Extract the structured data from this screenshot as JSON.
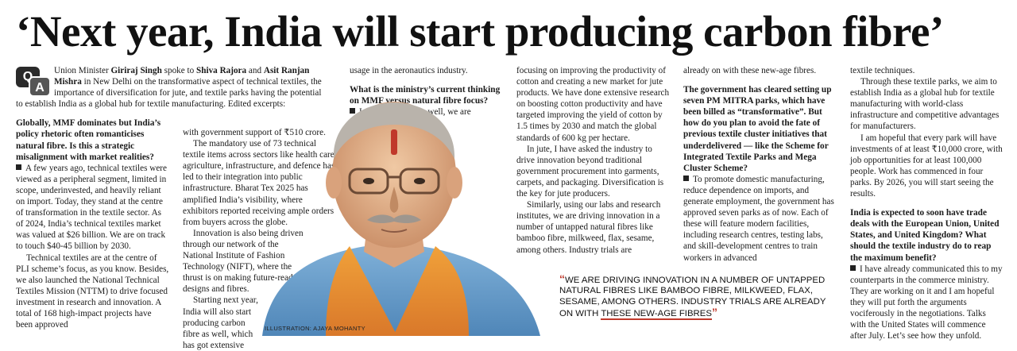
{
  "headline": "‘Next year, India will start producing carbon fibre’",
  "qa_logo": {
    "q": "Q",
    "a": "A"
  },
  "col1": {
    "intro_pre": "Union Minister ",
    "minister": "Giriraj Singh",
    "intro_mid": " spoke to ",
    "interviewer1": "Shiva Rajora",
    "intro_and": " and ",
    "interviewer2": "Asit Ranjan Mishra",
    "intro_post": " in New Delhi on the transformative aspect of technical textiles, the importance of diversification for jute, and textile parks having the potential to establish India as a global hub for textile manufacturing. Edited excerpts:",
    "q1": "Globally, MMF dominates but India’s policy rhetoric often romanticises natural fibre. Is this a strategic misalignment with market realities?",
    "a1": "A few years ago, technical textiles were viewed as a peripheral segment, limited in scope, underinvested, and heavily reliant on import. Today, they stand at the centre of transformation in the textile sector. As of 2024, India’s technical textiles market was valued at $26 billion. We are on track to touch $40-45 billion by 2030.",
    "p2": "Technical textiles are at the centre of PLI scheme’s focus, as you know. Besides, we also launched the National Technical Textiles Mission (NTTM) to drive focused investment in research and innovation. A total of 168 high-impact projects have been approved"
  },
  "col2": {
    "p1": "with government support of ₹510 crore.",
    "p2": "The mandatory use of 73 technical textile items across sectors like health care, agriculture, infrastructure, and defence has led to their integration into public infrastructure. Bharat Tex 2025 has amplified India’s visibility, where exhibitors reported receiving ample orders from buyers across the globe.",
    "p3": "Innovation is also being driven through our network of the National Institute of Fashion Technology (NIFT), where the thrust is on making future-ready designs and fibres.",
    "p4": "Starting next year, India will also start producing carbon fibre as well, which has got extensive"
  },
  "col3": {
    "p1": "usage in the aeronautics industry.",
    "q2": "What is the ministry’s current thinking on MMF versus natural fibre focus?",
    "a2": "In natural fibres as well, we are"
  },
  "col4": {
    "p1": "focusing on improving the productivity of cotton and creating a new market for jute products. We have done extensive research on boosting cotton productivity and have targeted improving the yield of cotton by 1.5 times by 2030 and match the global standards of 600 kg per hectare.",
    "p2": "In jute, I have asked the industry to drive innovation beyond traditional government procurement into garments, carpets, and packaging. Diversification is the key for jute producers.",
    "p3": "Similarly, using our labs and research institutes, we are driving innovation in a number of untapped natural fibres like bamboo fibre, milkweed, flax, sesame, among others. Industry trials are"
  },
  "col5": {
    "p1": "already on with these new-age fibres.",
    "q3": "The government has cleared setting up seven PM MITRA parks, which have been billed as “transformative”. But how do you plan to avoid the fate of previous textile cluster initiatives that underdelivered — like the Scheme for Integrated Textile Parks and Mega Cluster Scheme?",
    "a3": "To promote domestic manufacturing, reduce dependence on imports, and generate employment, the government has approved seven parks as of now. Each of these will feature modern facilities, including research centres, testing labs, and skill-development centres to train workers in advanced"
  },
  "col6": {
    "p1": "textile techniques.",
    "p2": "Through these textile parks, we aim to establish India as a global hub for textile manufacturing with world-class infrastructure and competitive advantages for manufacturers.",
    "p3": "I am hopeful that every park will have investments of at least ₹10,000 crore, with job opportunities for at least 100,000 people. Work has commenced in four parks. By 2026, you will start seeing the results.",
    "q4": "India is expected to soon have trade deals with the European Union, United States, and United Kingdom? What should the textile industry do to reap the maximum benefit?",
    "a4": "I have already communicated this to my counterparts in the commerce ministry. They are working on it and I am hopeful they will put forth the arguments vociferously in the negotiations. Talks with the United States will commence after July. Let’s see how they unfold."
  },
  "pullquote": {
    "open": "“",
    "main": "We are driving innovation in a number of untapped natural fibres like bamboo fibre, milkweed, flax, sesame, among others. Industry trials are already on with ",
    "underlined": "these new-age fibres",
    "close": "”"
  },
  "credit": "ILLUSTRATION: AJAYA MOHANTY",
  "colors": {
    "accent_red": "#c0392b",
    "text": "#1a1a1a"
  }
}
